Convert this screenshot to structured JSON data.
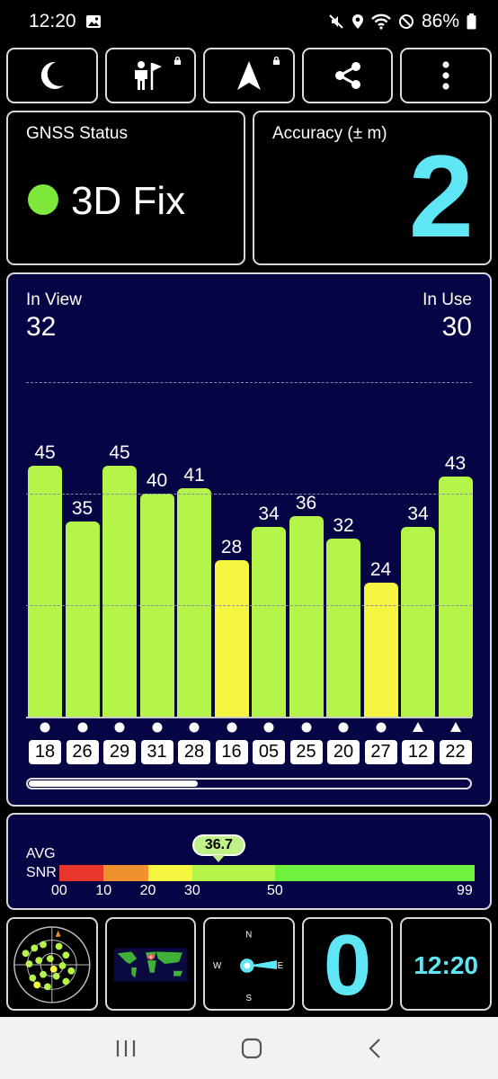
{
  "status_bar": {
    "time": "12:20",
    "battery": "86%"
  },
  "toolbar": {
    "buttons": [
      {
        "icon": "moon-icon",
        "locked": false
      },
      {
        "icon": "person-flag-icon",
        "locked": true
      },
      {
        "icon": "navigation-arrow-icon",
        "locked": true
      },
      {
        "icon": "share-icon",
        "locked": false
      },
      {
        "icon": "more-vert-icon",
        "locked": false
      }
    ]
  },
  "gnss_status": {
    "label": "GNSS Status",
    "fix": "3D Fix",
    "fix_color": "#7ee83a"
  },
  "accuracy": {
    "label": "Accuracy (± m)",
    "value": "2",
    "color": "#5fe6f5"
  },
  "satellites": {
    "in_view_label": "In View",
    "in_view": "32",
    "in_use_label": "In Use",
    "in_use": "30",
    "scroll_fraction": 0.38,
    "chart_data": {
      "type": "bar",
      "categories": [
        "18",
        "26",
        "29",
        "31",
        "28",
        "16",
        "05",
        "25",
        "20",
        "27",
        "12",
        "22"
      ],
      "values": [
        45,
        35,
        45,
        40,
        41,
        28,
        34,
        36,
        32,
        24,
        34,
        43
      ],
      "markers": [
        "circle",
        "circle",
        "circle",
        "circle",
        "circle",
        "circle",
        "circle",
        "circle",
        "circle",
        "circle",
        "triangle",
        "triangle"
      ],
      "ylim": [
        0,
        60
      ],
      "gridlines": [
        20,
        40,
        60
      ],
      "colors": {
        "high": "#b5f54a",
        "low": "#f5f542"
      }
    }
  },
  "snr": {
    "avg_label": "AVG",
    "snr_label": "SNR",
    "avg_value": "36.7",
    "avg_numeric": 36.7,
    "ticks": [
      "00",
      "10",
      "20",
      "30",
      "50",
      "99"
    ],
    "segments": [
      {
        "from": 0,
        "to": 10,
        "color": "#e8372a"
      },
      {
        "from": 10,
        "to": 20,
        "color": "#f0902e"
      },
      {
        "from": 20,
        "to": 30,
        "color": "#f5f542"
      },
      {
        "from": 30,
        "to": 50,
        "color": "#b5f54a"
      },
      {
        "from": 50,
        "to": 99,
        "color": "#6ef23e"
      }
    ]
  },
  "bottom": {
    "compass": {
      "n": "N",
      "e": "E",
      "s": "S",
      "w": "W"
    },
    "count": "0",
    "clock": "12:20"
  }
}
